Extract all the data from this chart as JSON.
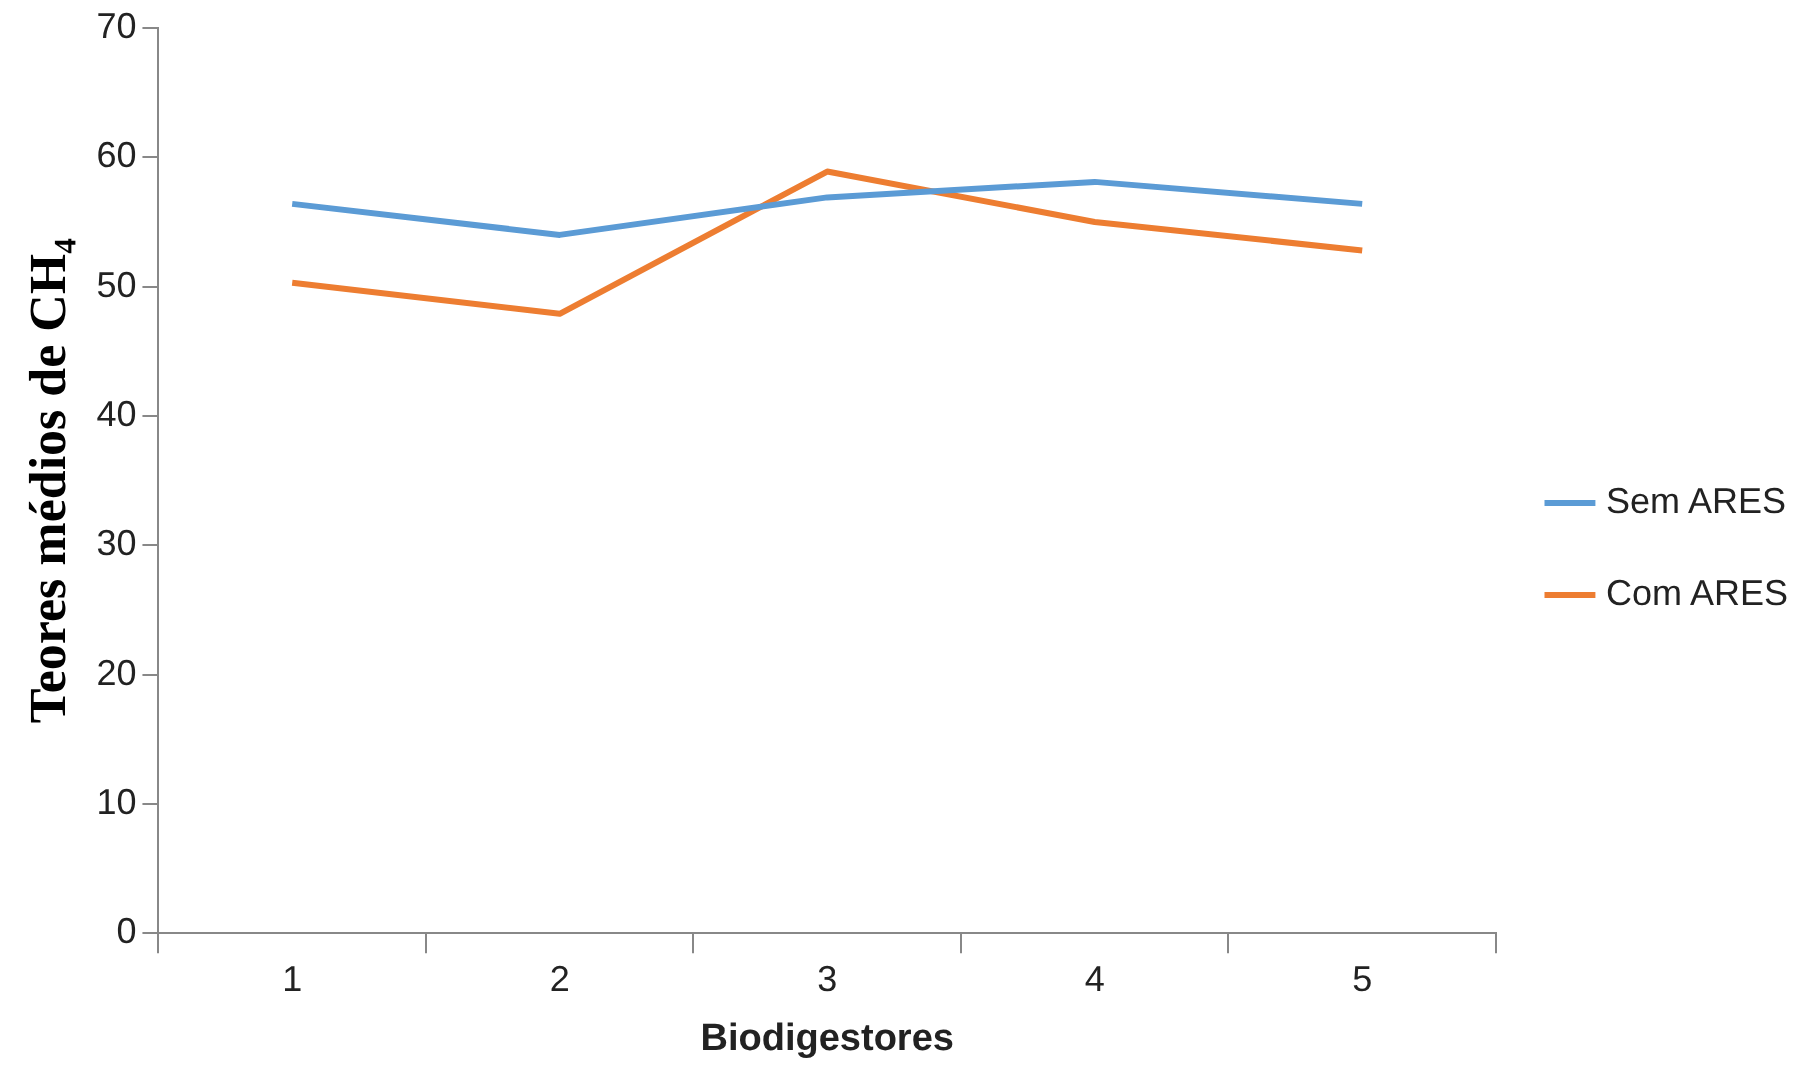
{
  "chart_data": {
    "type": "line",
    "xlabel": "Biodigestores",
    "ylabel": "Teores médios de CH₄",
    "categories": [
      "1",
      "2",
      "3",
      "4",
      "5"
    ],
    "series": [
      {
        "name": "Sem ARES",
        "color": "#5b9bd5",
        "values": [
          56.4,
          54.0,
          56.9,
          58.1,
          56.4
        ]
      },
      {
        "name": "Com ARES",
        "color": "#ed7d31",
        "values": [
          50.3,
          47.9,
          58.9,
          55.0,
          52.8
        ]
      }
    ],
    "ylim": [
      0,
      70
    ],
    "yticks": [
      0,
      10,
      20,
      30,
      40,
      50,
      60,
      70
    ],
    "legend": "right",
    "marker": "none",
    "line_style": "solid"
  }
}
